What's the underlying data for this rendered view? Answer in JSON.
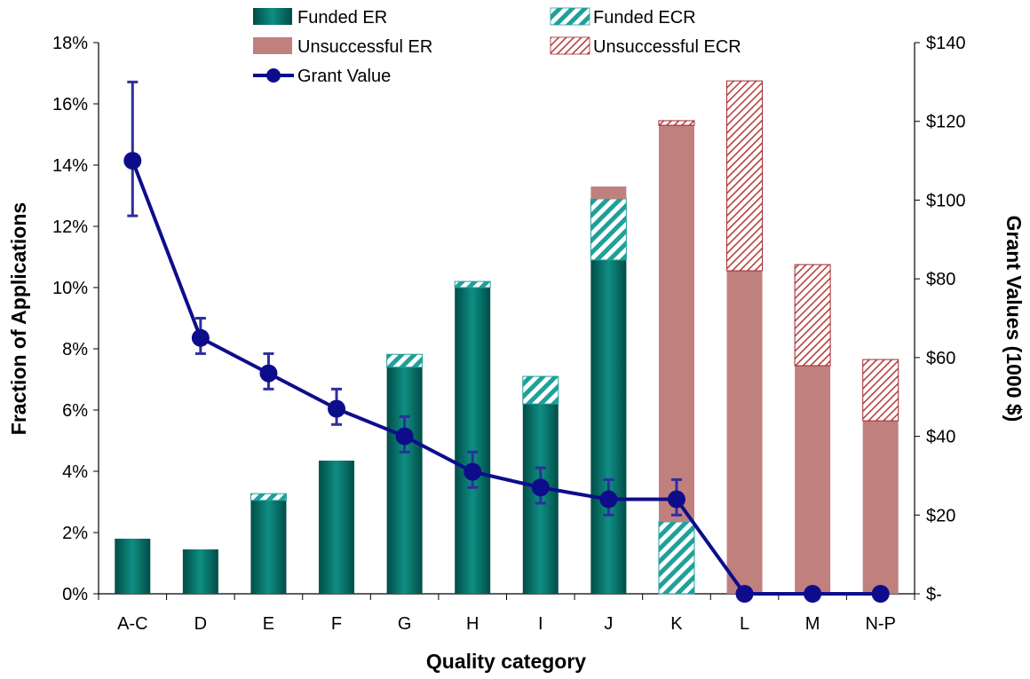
{
  "chart_data": {
    "type": "bar",
    "categories": [
      "A-C",
      "D",
      "E",
      "F",
      "G",
      "H",
      "I",
      "J",
      "K",
      "L",
      "M",
      "N-P"
    ],
    "xlabel": "Quality category",
    "ylabel": "Fraction of Applications",
    "y2label": "Grant Values (1000 $)",
    "ylim": [
      0,
      18
    ],
    "y2lim": [
      0,
      140
    ],
    "yticks": [
      "0%",
      "2%",
      "4%",
      "6%",
      "8%",
      "10%",
      "12%",
      "14%",
      "16%",
      "18%"
    ],
    "y2ticks": [
      "$-",
      "$20",
      "$40",
      "$60",
      "$80",
      "$100",
      "$120",
      "$140"
    ],
    "stacked": true,
    "legend_position": "top",
    "series": [
      {
        "name": "Funded ER",
        "kind": "bar",
        "color": "#006b63",
        "pattern": "solid",
        "values": [
          1.8,
          1.45,
          3.05,
          4.35,
          7.4,
          10.0,
          6.2,
          10.9,
          0,
          0,
          0,
          0
        ]
      },
      {
        "name": "Funded ECR",
        "kind": "bar",
        "color": "#20a09a",
        "pattern": "diagonal",
        "values": [
          0,
          0,
          0.22,
          0,
          0.42,
          0.2,
          0.9,
          2.0,
          2.35,
          0,
          0,
          0
        ]
      },
      {
        "name": "Unsuccessful ER",
        "kind": "bar",
        "color": "#c0807e",
        "pattern": "solid",
        "values": [
          0,
          0,
          0,
          0,
          0,
          0,
          0,
          0.4,
          12.95,
          10.55,
          7.45,
          5.65
        ]
      },
      {
        "name": "Unsuccessful ECR",
        "kind": "bar",
        "color": "#a0282c",
        "pattern": "dotted-diagonal",
        "values": [
          0,
          0,
          0,
          0,
          0,
          0,
          0,
          0,
          0.15,
          6.2,
          3.3,
          2.0
        ]
      },
      {
        "name": "Grant Value",
        "kind": "line",
        "axis": "right",
        "color": "#0d0d8c",
        "values": [
          110,
          65,
          56,
          47,
          40,
          31,
          27,
          24,
          24,
          0,
          0,
          0
        ],
        "err_low": [
          96,
          61,
          52,
          43,
          36,
          27,
          23,
          20,
          20,
          null,
          null,
          null
        ],
        "err_high": [
          130,
          70,
          61,
          52,
          45,
          36,
          32,
          29,
          29,
          null,
          null,
          null
        ]
      }
    ]
  }
}
